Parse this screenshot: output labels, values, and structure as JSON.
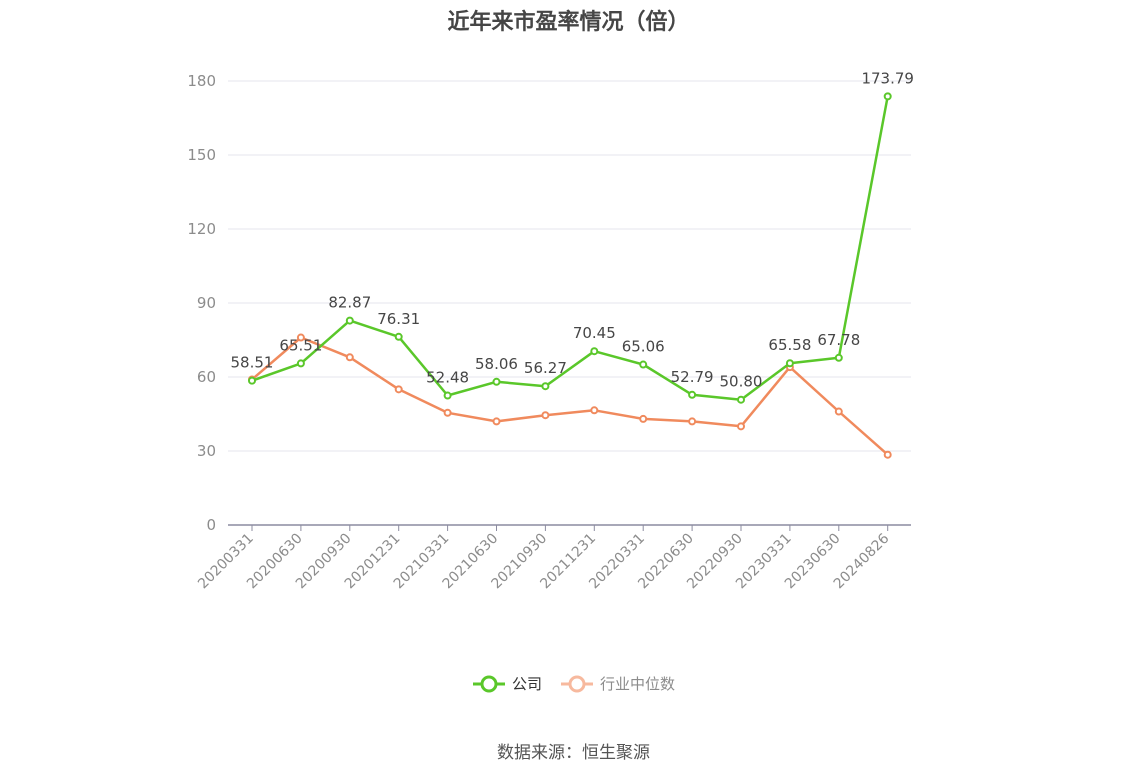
{
  "title": "近年来市盈率情况（倍）",
  "source": "数据来源：恒生聚源",
  "chart_data": {
    "type": "line",
    "title": "近年来市盈率情况（倍）",
    "xlabel": "",
    "ylabel": "",
    "categories": [
      "20200331",
      "20200630",
      "20200930",
      "20201231",
      "20210331",
      "20210630",
      "20210930",
      "20211231",
      "20220331",
      "20220630",
      "20220930",
      "20230331",
      "20230630",
      "20240826"
    ],
    "ylim": [
      0,
      180
    ],
    "yticks": [
      0,
      30,
      60,
      90,
      120,
      150,
      180
    ],
    "grid": true,
    "legend": "bottom-center",
    "series": [
      {
        "name": "公司",
        "color": "#5ac72a",
        "values": [
          58.51,
          65.51,
          82.87,
          76.31,
          52.48,
          58.06,
          56.27,
          70.45,
          65.06,
          52.79,
          50.8,
          65.58,
          67.78,
          173.79
        ],
        "labels": [
          "58.51",
          "65.51",
          "82.87",
          "76.31",
          "52.48",
          "58.06",
          "56.27",
          "70.45",
          "65.06",
          "52.79",
          "50.80",
          "65.58",
          "67.78",
          "173.79"
        ]
      },
      {
        "name": "行业中位数",
        "color": "#f08a5d",
        "values": [
          59.0,
          76.0,
          68.0,
          55.0,
          45.5,
          42.0,
          44.5,
          46.5,
          43.0,
          42.0,
          40.0,
          64.0,
          46.0,
          28.5
        ]
      }
    ]
  }
}
